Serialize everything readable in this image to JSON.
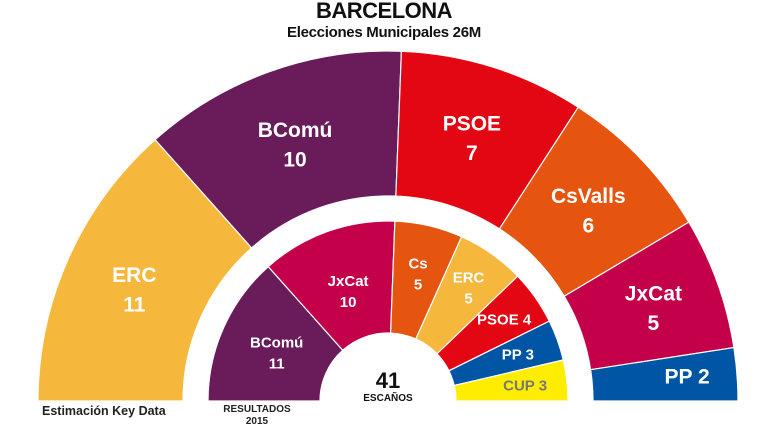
{
  "chart_data": [
    {
      "type": "pie",
      "subtype": "semicircle-parliament",
      "title": "BARCELONA",
      "subtitle": "Elecciones Municipales 26M",
      "caption": "Estimación Key Data",
      "total_seats": 41,
      "series": [
        {
          "name": "ERC",
          "value": 11,
          "color": "#F5B83D",
          "text_color": "#ffffff"
        },
        {
          "name": "BComú",
          "value": 10,
          "color": "#6A1B5A",
          "text_color": "#ffffff"
        },
        {
          "name": "PSOE",
          "value": 7,
          "color": "#E30613",
          "text_color": "#ffffff"
        },
        {
          "name": "CsValls",
          "value": 6,
          "color": "#E5550F",
          "text_color": "#ffffff"
        },
        {
          "name": "JxCat",
          "value": 5,
          "color": "#C4004A",
          "text_color": "#ffffff"
        },
        {
          "name": "PP",
          "value": 2,
          "color": "#0055A4",
          "text_color": "#ffffff"
        }
      ]
    },
    {
      "type": "pie",
      "subtype": "semicircle-parliament",
      "caption": "RESULTADOS 2015",
      "center_value": "41",
      "center_label": "ESCAÑOS",
      "series": [
        {
          "name": "BComú",
          "value": 11,
          "color": "#6A1B5A",
          "text_color": "#ffffff"
        },
        {
          "name": "JxCat",
          "value": 10,
          "color": "#C4004A",
          "text_color": "#ffffff"
        },
        {
          "name": "Cs",
          "value": 5,
          "color": "#E5550F",
          "text_color": "#ffffff"
        },
        {
          "name": "ERC",
          "value": 5,
          "color": "#F5B83D",
          "text_color": "#ffffff"
        },
        {
          "name": "PSOE",
          "value": 4,
          "color": "#E30613",
          "text_color": "#ffffff"
        },
        {
          "name": "PP",
          "value": 3,
          "color": "#0055A4",
          "text_color": "#ffffff"
        },
        {
          "name": "CUP",
          "value": 3,
          "color": "#FFED00",
          "text_color": "#777777"
        }
      ]
    }
  ]
}
